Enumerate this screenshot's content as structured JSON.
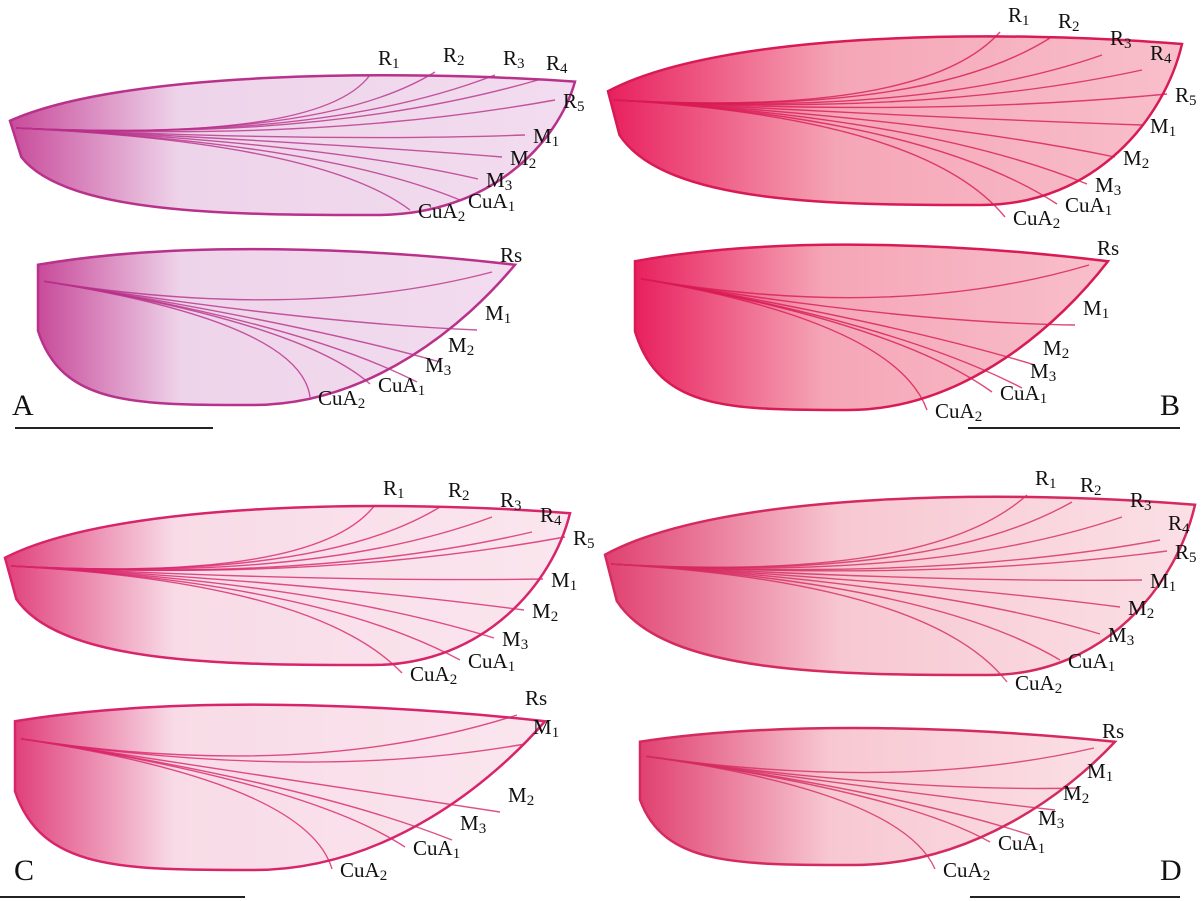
{
  "panels": [
    {
      "letter": "A",
      "forewing": [
        "R1",
        "R2",
        "R3",
        "R4",
        "R5",
        "M1",
        "M2",
        "M3",
        "CuA1",
        "CuA2"
      ],
      "hindwing": [
        "Rs",
        "M1",
        "M2",
        "M3",
        "CuA1",
        "CuA2"
      ]
    },
    {
      "letter": "B",
      "forewing": [
        "R1",
        "R2",
        "R3",
        "R4",
        "R5",
        "M1",
        "M2",
        "M3",
        "CuA1",
        "CuA2"
      ],
      "hindwing": [
        "Rs",
        "M1",
        "M2",
        "M3",
        "CuA1",
        "CuA2"
      ]
    },
    {
      "letter": "C",
      "forewing": [
        "R1",
        "R2",
        "R3",
        "R4",
        "R5",
        "M1",
        "M2",
        "M3",
        "CuA1",
        "CuA2"
      ],
      "hindwing": [
        "Rs",
        "M1",
        "M2",
        "M3",
        "CuA1",
        "CuA2"
      ]
    },
    {
      "letter": "D",
      "forewing": [
        "R1",
        "R2",
        "R3",
        "R4",
        "R5",
        "M1",
        "M2",
        "M3",
        "CuA1",
        "CuA2"
      ],
      "hindwing": [
        "Rs",
        "M1",
        "M2",
        "M3",
        "CuA1",
        "CuA2"
      ]
    }
  ]
}
